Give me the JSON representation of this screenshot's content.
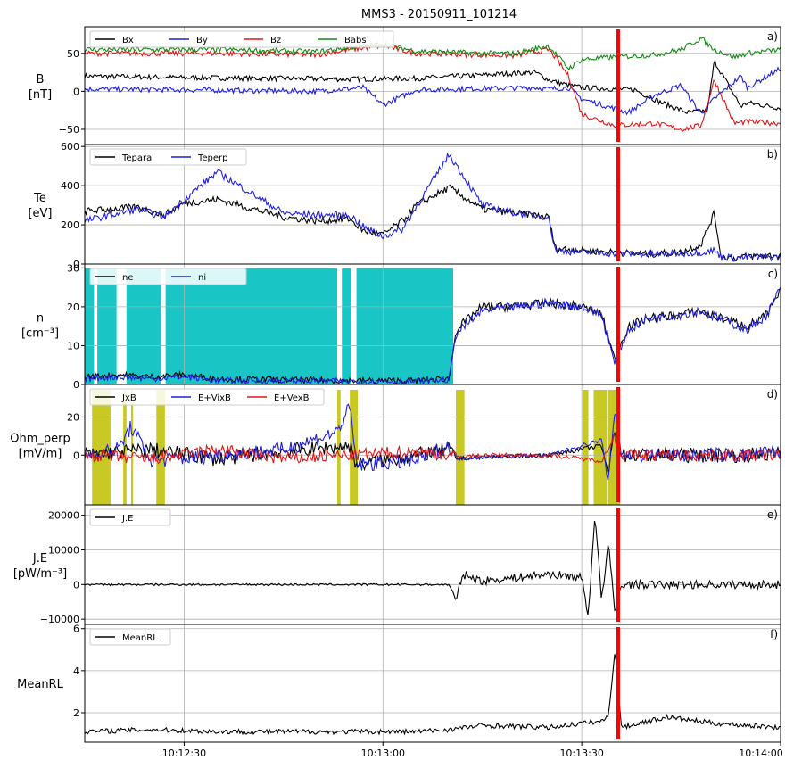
{
  "figure_title": "MMS3 - 20150911_101214",
  "colors": {
    "black": "#000000",
    "blue": "#1f1fdc",
    "red": "#e01515",
    "green": "#138a13",
    "cyan": "#00bfbf",
    "olive": "#bfbf00",
    "event_line": "#ff0000"
  },
  "chart_data": [
    {
      "type": "line",
      "panel": "a)",
      "ylabel_lines": [
        "B",
        "[nT]"
      ],
      "ylim": [
        -70,
        85
      ],
      "yticks": [
        -50,
        0,
        50
      ],
      "ytick_labels": [
        "−50",
        "0",
        "50"
      ],
      "grid": true,
      "legend_placement": "top-left",
      "series": [
        {
          "name": "Bx",
          "color": "black",
          "x": [
            0,
            15,
            40,
            50,
            68,
            70,
            73,
            75,
            83,
            87,
            91,
            94,
            95,
            99,
            100,
            105
          ],
          "y": [
            20,
            18,
            16,
            17,
            25,
            15,
            8,
            5,
            2,
            -15,
            -28,
            -25,
            40,
            -20,
            -15,
            -22
          ]
        },
        {
          "name": "By",
          "color": "blue",
          "x": [
            0,
            15,
            35,
            42,
            45,
            50,
            68,
            70,
            73,
            75,
            82,
            86,
            90,
            93,
            95,
            99,
            100,
            105
          ],
          "y": [
            3,
            2,
            0,
            5,
            -18,
            2,
            5,
            3,
            5,
            -10,
            -28,
            -5,
            8,
            -30,
            -10,
            20,
            5,
            30
          ]
        },
        {
          "name": "Bz",
          "color": "red",
          "x": [
            0,
            20,
            35,
            40,
            45,
            50,
            60,
            65,
            70,
            71,
            73,
            75,
            80,
            86,
            90,
            93,
            95,
            98,
            100,
            105
          ],
          "y": [
            50,
            50,
            48,
            55,
            60,
            50,
            48,
            47,
            55,
            45,
            20,
            -30,
            -45,
            -42,
            -50,
            -45,
            15,
            -42,
            -40,
            -42
          ]
        },
        {
          "name": "Babs",
          "color": "green",
          "x": [
            0,
            20,
            35,
            40,
            45,
            50,
            60,
            65,
            70,
            71,
            73,
            75,
            80,
            86,
            90,
            93,
            95,
            98,
            100,
            105
          ],
          "y": [
            55,
            55,
            52,
            58,
            62,
            53,
            50,
            50,
            60,
            50,
            30,
            42,
            45,
            48,
            55,
            70,
            55,
            45,
            50,
            55
          ]
        }
      ]
    },
    {
      "type": "line",
      "panel": "b)",
      "ylabel_lines": [
        "Te",
        "[eV]"
      ],
      "ylim": [
        0,
        610
      ],
      "yticks": [
        0,
        200,
        400,
        600
      ],
      "ytick_labels": [
        "0",
        "200",
        "400",
        "600"
      ],
      "grid": true,
      "legend_placement": "top-left",
      "series": [
        {
          "name": "Tepara",
          "color": "black",
          "x": [
            0,
            8,
            12,
            15,
            20,
            30,
            35,
            40,
            42,
            45,
            48,
            50,
            55,
            60,
            65,
            70,
            71,
            75,
            80,
            85,
            90,
            93,
            95,
            96,
            98,
            100,
            105
          ],
          "y": [
            270,
            290,
            250,
            310,
            330,
            240,
            220,
            230,
            170,
            150,
            220,
            300,
            390,
            280,
            260,
            240,
            80,
            70,
            60,
            50,
            60,
            100,
            260,
            40,
            30,
            40,
            45
          ]
        },
        {
          "name": "Teperp",
          "color": "blue",
          "x": [
            0,
            8,
            12,
            15,
            20,
            30,
            35,
            40,
            42,
            45,
            48,
            50,
            55,
            60,
            65,
            70,
            71,
            75,
            80,
            85,
            90,
            93,
            95,
            96,
            98,
            100,
            105
          ],
          "y": [
            220,
            280,
            240,
            330,
            470,
            260,
            250,
            250,
            190,
            140,
            180,
            290,
            560,
            300,
            260,
            240,
            70,
            60,
            55,
            50,
            55,
            60,
            70,
            40,
            30,
            35,
            35
          ]
        }
      ]
    },
    {
      "type": "line",
      "panel": "c)",
      "ylabel_lines": [
        "n",
        "[cm⁻³]"
      ],
      "ylim": [
        0,
        31
      ],
      "yticks": [
        0,
        10,
        20,
        30
      ],
      "ytick_labels": [
        "0",
        "10",
        "20",
        "30"
      ],
      "grid": true,
      "legend_placement": "top-left",
      "shaded_intervals": {
        "color": "cyan",
        "ranges": [
          [
            0.0,
            1.4
          ],
          [
            1.9,
            4.8
          ],
          [
            6.3,
            11.5
          ],
          [
            12.2,
            38.1
          ],
          [
            38.8,
            40.2
          ],
          [
            41.0,
            55.6
          ]
        ]
      },
      "series": [
        {
          "name": "ne",
          "color": "black",
          "x": [
            0,
            5,
            10,
            15,
            20,
            30,
            40,
            50,
            55,
            56,
            58,
            60,
            65,
            70,
            75,
            78,
            80,
            81,
            82,
            85,
            90,
            93,
            94,
            96,
            100,
            103,
            105
          ],
          "y": [
            2,
            2.5,
            2,
            2.5,
            1.5,
            1.2,
            1,
            1,
            1.5,
            14,
            17,
            20,
            20,
            21,
            20,
            18,
            6,
            11,
            15,
            17,
            18,
            19,
            18,
            17,
            15,
            18,
            24
          ]
        },
        {
          "name": "ni",
          "color": "blue",
          "x": [
            0,
            5,
            10,
            15,
            20,
            30,
            40,
            50,
            55,
            56,
            58,
            60,
            65,
            70,
            75,
            78,
            80,
            81,
            82,
            85,
            90,
            93,
            94,
            96,
            100,
            103,
            105
          ],
          "y": [
            1.5,
            2,
            1.5,
            2,
            1,
            1,
            0.8,
            0.8,
            1.2,
            13,
            16,
            19,
            20,
            21,
            20,
            18,
            5,
            10,
            14,
            17,
            18,
            19,
            18,
            17,
            14,
            18,
            25
          ]
        }
      ]
    },
    {
      "type": "line",
      "panel": "d)",
      "ylabel_lines": [
        "Ohm_perp",
        "[mV/m]"
      ],
      "ylim": [
        -26,
        37
      ],
      "yticks": [
        0,
        20
      ],
      "ytick_labels": [
        "0",
        "20"
      ],
      "grid": true,
      "legend_placement": "top-left",
      "shaded_intervals": {
        "color": "olive",
        "ranges": [
          [
            1.1,
            3.9
          ],
          [
            5.8,
            6.3
          ],
          [
            7.0,
            7.3
          ],
          [
            10.8,
            12.1
          ],
          [
            38.1,
            38.6
          ],
          [
            40.0,
            41.2
          ],
          [
            56.0,
            57.3
          ],
          [
            75.1,
            76.0
          ],
          [
            76.8,
            78.8
          ],
          [
            79.0,
            80.8
          ]
        ]
      },
      "series": [
        {
          "name": "JxB",
          "color": "black",
          "x": [
            0,
            10,
            20,
            30,
            40,
            41,
            50,
            55,
            56,
            60,
            70,
            78,
            79,
            80,
            81,
            90,
            100,
            105
          ],
          "y": [
            0,
            3,
            -2,
            2,
            5,
            -5,
            0,
            3,
            -2,
            -1,
            0,
            5,
            -10,
            15,
            0,
            0,
            0,
            1
          ]
        },
        {
          "name": "E+VixB",
          "color": "blue",
          "x": [
            0,
            5,
            7,
            10,
            20,
            30,
            38,
            40,
            41,
            50,
            55,
            56,
            60,
            70,
            78,
            79,
            80,
            81,
            90,
            100,
            105
          ],
          "y": [
            0,
            3,
            15,
            -3,
            0,
            3,
            12,
            25,
            -5,
            -3,
            5,
            -2,
            -1,
            0,
            8,
            -15,
            25,
            0,
            0,
            0,
            2
          ]
        },
        {
          "name": "E+VexB",
          "color": "red",
          "x": [
            0,
            10,
            20,
            30,
            40,
            50,
            55,
            56,
            60,
            70,
            78,
            80,
            81,
            90,
            92,
            93,
            100,
            105
          ],
          "y": [
            0,
            -2,
            3,
            -2,
            0,
            2,
            0,
            -1,
            0,
            0,
            -3,
            10,
            0,
            0,
            0,
            0,
            0,
            0
          ]
        }
      ]
    },
    {
      "type": "line",
      "panel": "e)",
      "ylabel_lines": [
        "J.E",
        "[pW/m⁻³]"
      ],
      "ylim": [
        -11500,
        23000
      ],
      "yticks": [
        -10000,
        0,
        10000,
        20000
      ],
      "ytick_labels": [
        "−10000",
        "0",
        "10000",
        "20000"
      ],
      "grid": true,
      "legend_placement": "top-left",
      "series": [
        {
          "name": "J.E",
          "color": "black",
          "x": [
            0,
            10,
            20,
            30,
            40,
            50,
            55,
            56,
            57,
            60,
            65,
            70,
            75,
            76,
            77,
            78,
            79,
            80,
            81,
            85,
            90,
            100,
            105
          ],
          "y": [
            0,
            0,
            0,
            0,
            0,
            0,
            0,
            -5000,
            3000,
            1000,
            2000,
            3000,
            2000,
            -9000,
            21000,
            -5000,
            12000,
            -8000,
            0,
            0,
            0,
            0,
            0
          ]
        }
      ]
    },
    {
      "type": "line",
      "panel": "f)",
      "ylabel_lines": [
        "MeanRL"
      ],
      "ylim": [
        0.6,
        6.2
      ],
      "yticks": [
        2,
        4,
        6
      ],
      "ytick_labels": [
        "2",
        "4",
        "6"
      ],
      "grid": true,
      "legend_placement": "top-left",
      "series": [
        {
          "name": "MeanRL",
          "color": "black",
          "x": [
            0,
            10,
            20,
            30,
            40,
            50,
            55,
            60,
            70,
            75,
            78,
            79,
            80,
            81,
            85,
            88,
            90,
            95,
            100,
            105
          ],
          "y": [
            1.1,
            1.2,
            1.1,
            1.1,
            1.1,
            1.1,
            1.2,
            1.4,
            1.3,
            1.5,
            1.6,
            1.8,
            5.0,
            1.3,
            1.6,
            1.8,
            1.7,
            1.5,
            1.4,
            1.3
          ]
        }
      ]
    }
  ],
  "shared_x": {
    "xlim": [
      0,
      105
    ],
    "ticks": [
      15,
      45,
      75,
      105
    ],
    "tick_labels": [
      "10:12:30",
      "10:13:00",
      "10:13:30",
      "10:14:00"
    ],
    "event_marker_x": 80.5
  }
}
